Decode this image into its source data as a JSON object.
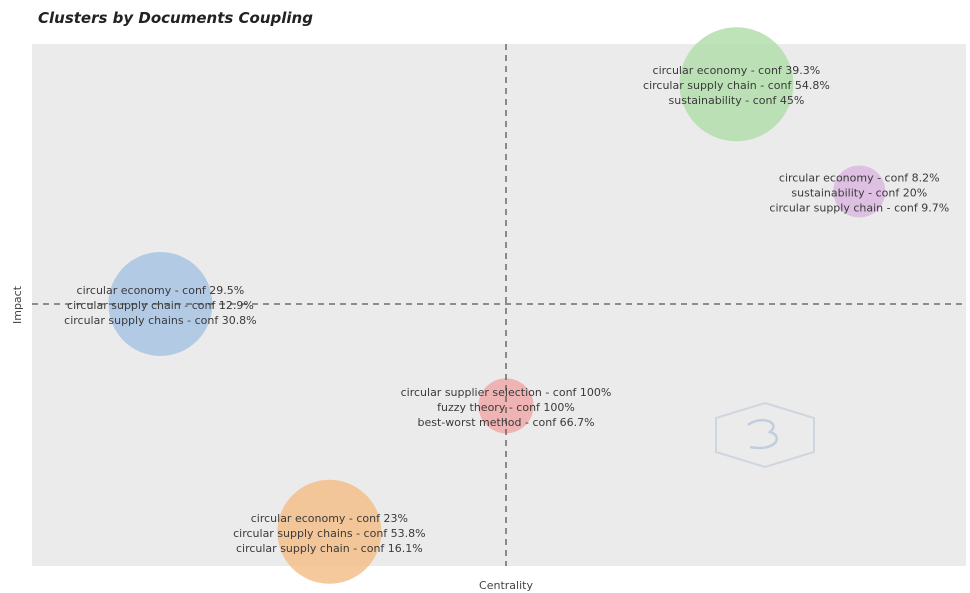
{
  "chart_data": {
    "type": "scatter",
    "title": "Clusters by Documents Coupling",
    "xlabel": "Centrality",
    "ylabel": "Impact",
    "grid": false,
    "background": "#ebebeb",
    "reference_lines": "dashed vertical and horizontal quadrant lines",
    "clusters": [
      {
        "x": -0.9,
        "y": 0.0,
        "size": 1.0,
        "color": "#a9c4e4",
        "lines": [
          "circular economy - conf 29.5%",
          "circular supply chain - conf 12.9%",
          "circular supply chains - conf 30.8%"
        ]
      },
      {
        "x": 0.6,
        "y": 0.82,
        "size": 1.2,
        "color": "#b3deab",
        "lines": [
          "circular economy - conf 39.3%",
          "circular supply chain - conf 54.8%",
          "sustainability - conf 45%"
        ]
      },
      {
        "x": 0.92,
        "y": 0.42,
        "size": 0.25,
        "color": "#dcb8e0",
        "lines": [
          "circular economy - conf 8.2%",
          "sustainability - conf 20%",
          "circular supply chain - conf 9.7%"
        ]
      },
      {
        "x": 0.0,
        "y": -0.38,
        "size": 0.28,
        "color": "#f1a9a9",
        "lines": [
          "circular supplier selection - conf 100%",
          "fuzzy theory - conf 100%",
          "best-worst method - conf 66.7%"
        ]
      },
      {
        "x": -0.46,
        "y": -0.85,
        "size": 1.0,
        "color": "#f4c08c",
        "lines": [
          "circular economy - conf 23%",
          "circular supply chains - conf 53.8%",
          "circular supply chain - conf 16.1%"
        ]
      }
    ]
  }
}
